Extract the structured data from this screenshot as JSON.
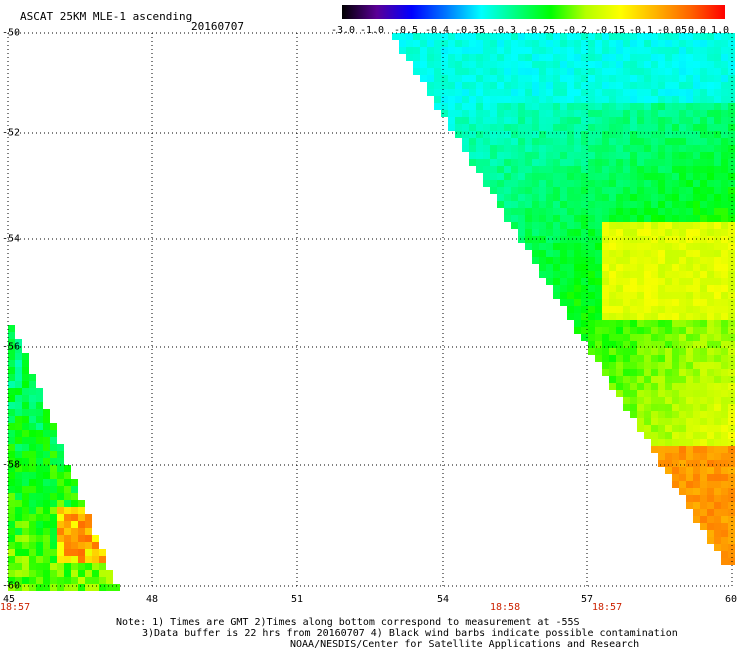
{
  "header": {
    "title": "ASCAT 25KM MLE-1 ascending",
    "date": "20160707"
  },
  "colorbar": {
    "labels": [
      "-3.0",
      "-1.0",
      "-0.5",
      "-0.4",
      "-0.35",
      "-0.3",
      "-0.25",
      "-0.2",
      "-0.15",
      "-0.1",
      "-0.05",
      "0.0",
      "1.0"
    ],
    "stops": [
      "#000000",
      "#5a0096",
      "#0000ff",
      "#0078ff",
      "#00ffff",
      "#00ff7f",
      "#00ff00",
      "#b4ff00",
      "#ffff00",
      "#ffb400",
      "#ff6400",
      "#ff0000"
    ]
  },
  "axes": {
    "lat_labels": [
      "-50",
      "-52",
      "-54",
      "-56",
      "-58",
      "-60"
    ],
    "lon_labels": [
      "45",
      "48",
      "51",
      "54",
      "57",
      "60"
    ],
    "lat_range": [
      -60,
      -50
    ],
    "lon_range": [
      45,
      60
    ]
  },
  "times": [
    {
      "label": "18:57",
      "lon": 45
    },
    {
      "label": "18:58",
      "lon": 55.2
    },
    {
      "label": "18:57",
      "lon": 57.3
    }
  ],
  "notes": {
    "line1": "Note: 1) Times are GMT 2)Times along bottom correspond to measurement at -55S",
    "line2": "3)Data buffer is 22 hrs from 20160707 4) Black wind barbs indicate possible contamination",
    "line3": "NOAA/NESDIS/Center for Satellite Applications and Research"
  }
}
